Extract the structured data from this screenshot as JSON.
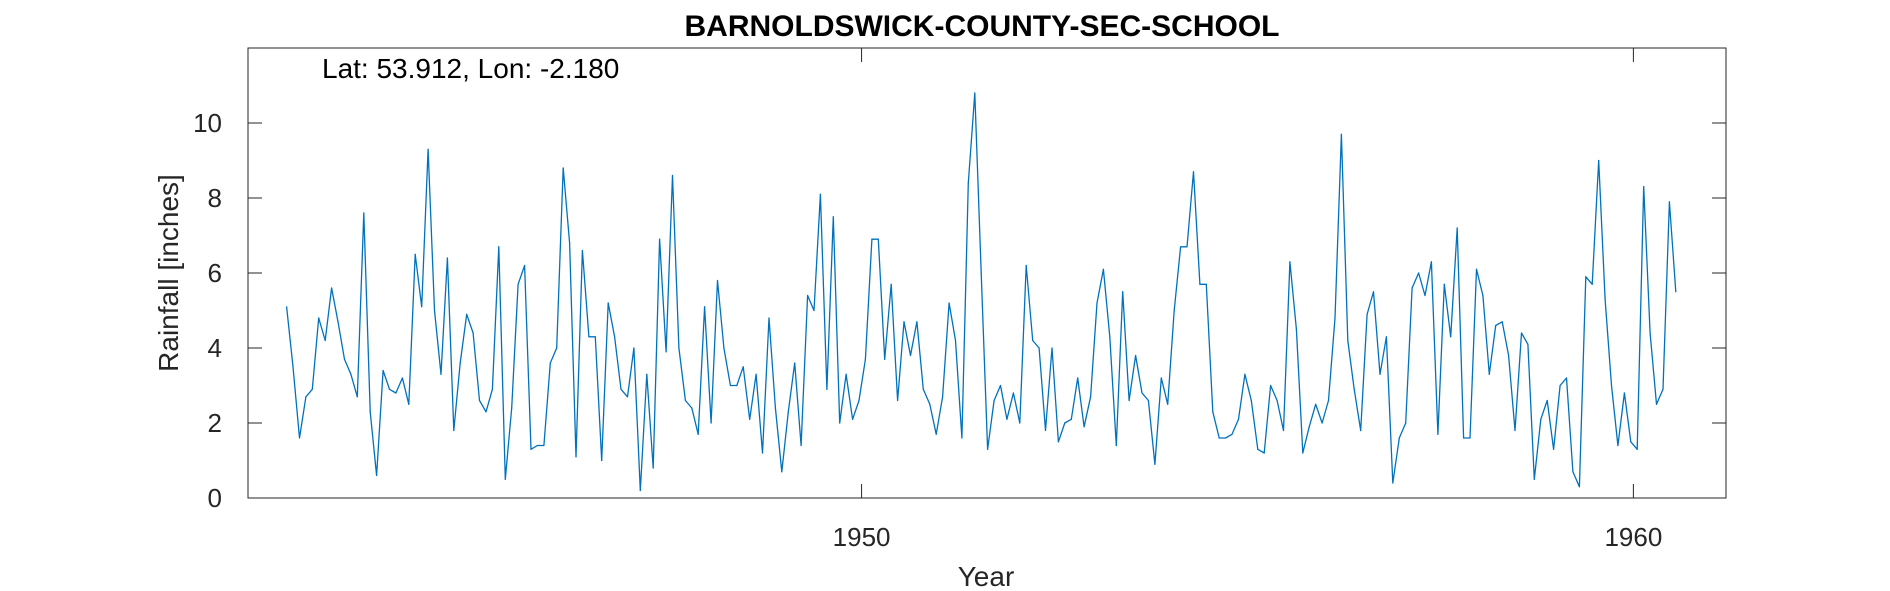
{
  "chart_data": {
    "type": "line",
    "title": "BARNOLDSWICK-COUNTY-SEC-SCHOOL",
    "annotation": "Lat: 53.912, Lon: -2.180",
    "xlabel": "Year",
    "ylabel": "Rainfall [inches]",
    "xlim": [
      1942.05,
      1961.2
    ],
    "ylim": [
      0,
      12
    ],
    "xticks": [
      1950,
      1960
    ],
    "xtick_labels": [
      "1950",
      "1960"
    ],
    "yticks": [
      0,
      2,
      4,
      6,
      8,
      10
    ],
    "ytick_labels": [
      "0",
      "2",
      "4",
      "6",
      "8",
      "10"
    ],
    "grid": false,
    "series_color": "#0072BD",
    "series": [
      {
        "x_start": 1942.55,
        "x_step": 0.08333333,
        "values": [
          5.1,
          3.5,
          1.6,
          2.7,
          2.9,
          4.8,
          4.2,
          5.6,
          4.7,
          3.7,
          3.3,
          2.7,
          7.6,
          2.3,
          0.6,
          3.4,
          2.9,
          2.8,
          3.2,
          2.5,
          6.5,
          5.1,
          9.3,
          5.0,
          3.3,
          6.4,
          1.8,
          3.6,
          4.9,
          4.4,
          2.6,
          2.3,
          2.9,
          6.7,
          0.5,
          2.4,
          5.7,
          6.2,
          1.3,
          1.4,
          1.4,
          3.6,
          4.0,
          8.8,
          6.8,
          1.1,
          6.6,
          4.3,
          4.3,
          1.0,
          5.2,
          4.3,
          2.9,
          2.7,
          4.0,
          0.2,
          3.3,
          0.8,
          6.9,
          3.9,
          8.6,
          4.0,
          2.6,
          2.4,
          1.7,
          5.1,
          2.0,
          5.8,
          4.0,
          3.0,
          3.0,
          3.5,
          2.1,
          3.3,
          1.2,
          4.8,
          2.4,
          0.7,
          2.3,
          3.6,
          1.4,
          5.4,
          5.0,
          8.1,
          2.9,
          7.5,
          2.0,
          3.3,
          2.1,
          2.6,
          3.7,
          6.9,
          6.9,
          3.7,
          5.7,
          2.6,
          4.7,
          3.8,
          4.7,
          2.9,
          2.5,
          1.7,
          2.7,
          5.2,
          4.2,
          1.6,
          8.4,
          10.8,
          6.0,
          1.3,
          2.6,
          3.0,
          2.1,
          2.8,
          2.0,
          6.2,
          4.2,
          4.0,
          1.8,
          4.0,
          1.5,
          2.0,
          2.1,
          3.2,
          1.9,
          2.7,
          5.2,
          6.1,
          4.3,
          1.4,
          5.5,
          2.6,
          3.8,
          2.8,
          2.6,
          0.9,
          3.2,
          2.5,
          5.0,
          6.7,
          6.7,
          8.7,
          5.7,
          5.7,
          2.3,
          1.6,
          1.6,
          1.7,
          2.1,
          3.3,
          2.6,
          1.3,
          1.2,
          3.0,
          2.6,
          1.8,
          6.3,
          4.5,
          1.2,
          1.9,
          2.5,
          2.0,
          2.6,
          4.8,
          9.7,
          4.2,
          2.9,
          1.8,
          4.9,
          5.5,
          3.3,
          4.3,
          0.4,
          1.6,
          2.0,
          5.6,
          6.0,
          5.4,
          6.3,
          1.7,
          5.7,
          4.3,
          7.2,
          1.6,
          1.6,
          6.1,
          5.4,
          3.3,
          4.6,
          4.7,
          3.8,
          1.8,
          4.4,
          4.1,
          0.5,
          2.1,
          2.6,
          1.3,
          3.0,
          3.2,
          0.7,
          0.3,
          5.9,
          5.7,
          9.0,
          5.3,
          3.0,
          1.4,
          2.8,
          1.5,
          1.3,
          8.3,
          4.4,
          2.5,
          2.9,
          7.9,
          5.5
        ]
      }
    ]
  }
}
